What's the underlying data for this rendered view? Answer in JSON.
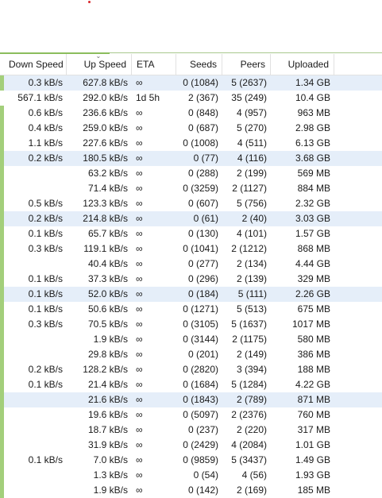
{
  "columns": [
    {
      "label": "Down Speed"
    },
    {
      "label": "Up Speed"
    },
    {
      "label": "ETA"
    },
    {
      "label": "Seeds"
    },
    {
      "label": "Peers"
    },
    {
      "label": "Uploaded"
    }
  ],
  "colors": {
    "accent_green": "#a3cf7b",
    "selected_row": "#e5eef9",
    "marker_red": "#d9262b"
  },
  "icons": {
    "sort": "sort-chevron-down-icon"
  },
  "rows": [
    {
      "down": "0.3 kB/s",
      "up": "627.8 kB/s",
      "eta": "∞",
      "seeds": "0 (1084)",
      "peers": "5 (2637)",
      "uploaded": "1.34 GB",
      "selected": true,
      "bar": true
    },
    {
      "down": "567.1 kB/s",
      "up": "292.0 kB/s",
      "eta": "1d 5h",
      "seeds": "2 (367)",
      "peers": "35 (249)",
      "uploaded": "10.4 GB",
      "selected": false,
      "bar": false
    },
    {
      "down": "0.6 kB/s",
      "up": "236.6 kB/s",
      "eta": "∞",
      "seeds": "0 (848)",
      "peers": "4 (957)",
      "uploaded": "963 MB",
      "selected": false,
      "bar": true
    },
    {
      "down": "0.4 kB/s",
      "up": "259.0 kB/s",
      "eta": "∞",
      "seeds": "0 (687)",
      "peers": "5 (270)",
      "uploaded": "2.98 GB",
      "selected": false,
      "bar": true
    },
    {
      "down": "1.1 kB/s",
      "up": "227.6 kB/s",
      "eta": "∞",
      "seeds": "0 (1008)",
      "peers": "4 (511)",
      "uploaded": "6.13 GB",
      "selected": false,
      "bar": true
    },
    {
      "down": "0.2 kB/s",
      "up": "180.5 kB/s",
      "eta": "∞",
      "seeds": "0 (77)",
      "peers": "4 (116)",
      "uploaded": "3.68 GB",
      "selected": true,
      "bar": true
    },
    {
      "down": "",
      "up": "63.2 kB/s",
      "eta": "∞",
      "seeds": "0 (288)",
      "peers": "2 (199)",
      "uploaded": "569 MB",
      "selected": false,
      "bar": true
    },
    {
      "down": "",
      "up": "71.4 kB/s",
      "eta": "∞",
      "seeds": "0 (3259)",
      "peers": "2 (1127)",
      "uploaded": "884 MB",
      "selected": false,
      "bar": true
    },
    {
      "down": "0.5 kB/s",
      "up": "123.3 kB/s",
      "eta": "∞",
      "seeds": "0 (607)",
      "peers": "5 (756)",
      "uploaded": "2.32 GB",
      "selected": false,
      "bar": true
    },
    {
      "down": "0.2 kB/s",
      "up": "214.8 kB/s",
      "eta": "∞",
      "seeds": "0 (61)",
      "peers": "2 (40)",
      "uploaded": "3.03 GB",
      "selected": true,
      "bar": true
    },
    {
      "down": "0.1 kB/s",
      "up": "65.7 kB/s",
      "eta": "∞",
      "seeds": "0 (130)",
      "peers": "4 (101)",
      "uploaded": "1.57 GB",
      "selected": false,
      "bar": true
    },
    {
      "down": "0.3 kB/s",
      "up": "119.1 kB/s",
      "eta": "∞",
      "seeds": "0 (1041)",
      "peers": "2 (1212)",
      "uploaded": "868 MB",
      "selected": false,
      "bar": true
    },
    {
      "down": "",
      "up": "40.4 kB/s",
      "eta": "∞",
      "seeds": "0 (277)",
      "peers": "2 (134)",
      "uploaded": "4.44 GB",
      "selected": false,
      "bar": true
    },
    {
      "down": "0.1 kB/s",
      "up": "37.3 kB/s",
      "eta": "∞",
      "seeds": "0 (296)",
      "peers": "2 (139)",
      "uploaded": "329 MB",
      "selected": false,
      "bar": true
    },
    {
      "down": "0.1 kB/s",
      "up": "52.0 kB/s",
      "eta": "∞",
      "seeds": "0 (184)",
      "peers": "5 (111)",
      "uploaded": "2.26 GB",
      "selected": true,
      "bar": true
    },
    {
      "down": "0.1 kB/s",
      "up": "50.6 kB/s",
      "eta": "∞",
      "seeds": "0 (1271)",
      "peers": "5 (513)",
      "uploaded": "675 MB",
      "selected": false,
      "bar": true
    },
    {
      "down": "0.3 kB/s",
      "up": "70.5 kB/s",
      "eta": "∞",
      "seeds": "0 (3105)",
      "peers": "5 (1637)",
      "uploaded": "1017 MB",
      "selected": false,
      "bar": true
    },
    {
      "down": "",
      "up": "1.9 kB/s",
      "eta": "∞",
      "seeds": "0 (3144)",
      "peers": "2 (1175)",
      "uploaded": "580 MB",
      "selected": false,
      "bar": true
    },
    {
      "down": "",
      "up": "29.8 kB/s",
      "eta": "∞",
      "seeds": "0 (201)",
      "peers": "2 (149)",
      "uploaded": "386 MB",
      "selected": false,
      "bar": true
    },
    {
      "down": "0.2 kB/s",
      "up": "128.2 kB/s",
      "eta": "∞",
      "seeds": "0 (2820)",
      "peers": "3 (394)",
      "uploaded": "188 MB",
      "selected": false,
      "bar": true
    },
    {
      "down": "0.1 kB/s",
      "up": "21.4 kB/s",
      "eta": "∞",
      "seeds": "0 (1684)",
      "peers": "5 (1284)",
      "uploaded": "4.22 GB",
      "selected": false,
      "bar": true
    },
    {
      "down": "",
      "up": "21.6 kB/s",
      "eta": "∞",
      "seeds": "0 (1843)",
      "peers": "2 (789)",
      "uploaded": "871 MB",
      "selected": true,
      "bar": true
    },
    {
      "down": "",
      "up": "19.6 kB/s",
      "eta": "∞",
      "seeds": "0 (5097)",
      "peers": "2 (2376)",
      "uploaded": "760 MB",
      "selected": false,
      "bar": true
    },
    {
      "down": "",
      "up": "18.7 kB/s",
      "eta": "∞",
      "seeds": "0 (237)",
      "peers": "2 (220)",
      "uploaded": "317 MB",
      "selected": false,
      "bar": true
    },
    {
      "down": "",
      "up": "31.9 kB/s",
      "eta": "∞",
      "seeds": "0 (2429)",
      "peers": "4 (2084)",
      "uploaded": "1.01 GB",
      "selected": false,
      "bar": true
    },
    {
      "down": "0.1 kB/s",
      "up": "7.0 kB/s",
      "eta": "∞",
      "seeds": "0 (9859)",
      "peers": "5 (3437)",
      "uploaded": "1.49 GB",
      "selected": false,
      "bar": true
    },
    {
      "down": "",
      "up": "1.3 kB/s",
      "eta": "∞",
      "seeds": "0 (54)",
      "peers": "4 (56)",
      "uploaded": "1.93 GB",
      "selected": false,
      "bar": true
    },
    {
      "down": "",
      "up": "1.9 kB/s",
      "eta": "∞",
      "seeds": "0 (142)",
      "peers": "2 (169)",
      "uploaded": "185 MB",
      "selected": false,
      "bar": true
    }
  ]
}
